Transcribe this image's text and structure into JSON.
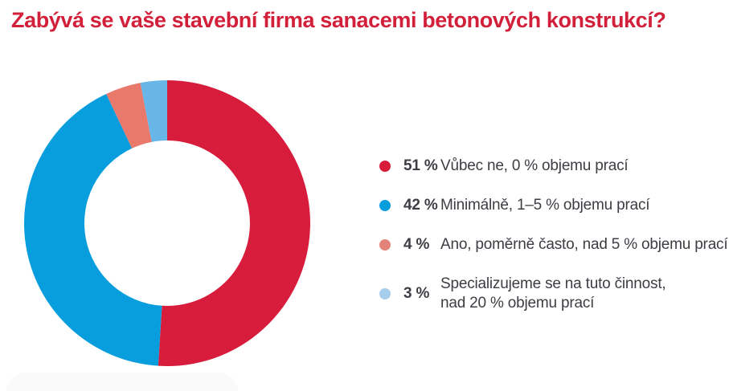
{
  "title": "Zabývá se vaše stavební firma sanacemi betonových konstrukcí?",
  "title_color": "#D2203A",
  "text_color": "#3D3D44",
  "chart_data": {
    "type": "pie",
    "subtype": "donut",
    "title": "Zabývá se vaše stavební firma sanacemi betonových konstrukcí?",
    "direction": "clockwise",
    "start_angle_deg": 0,
    "inner_radius_ratio": 0.58,
    "legend_position": "right",
    "total_pct": 100,
    "segments": [
      {
        "pct_label": "51 %",
        "value_pct": 51,
        "label": "Vůbec ne, 0 % objemu prací",
        "color": "#D81C3C",
        "legend_color": "#D81C3C"
      },
      {
        "pct_label": "42 %",
        "value_pct": 42,
        "label": "Minimálně, 1–5 % objemu prací",
        "color": "#089EDE",
        "legend_color": "#089EDE"
      },
      {
        "pct_label": "4 %",
        "value_pct": 4,
        "label": "Ano, poměrně často, nad 5 % objemu prací",
        "color": "#E8796B",
        "legend_color": "#E2837A"
      },
      {
        "pct_label": "3 %",
        "value_pct": 3,
        "label": "Specializujeme se na tuto činnost,\nnad 20 % objemu prací",
        "color": "#68B5E8",
        "legend_color": "#A6CDEC"
      }
    ]
  }
}
